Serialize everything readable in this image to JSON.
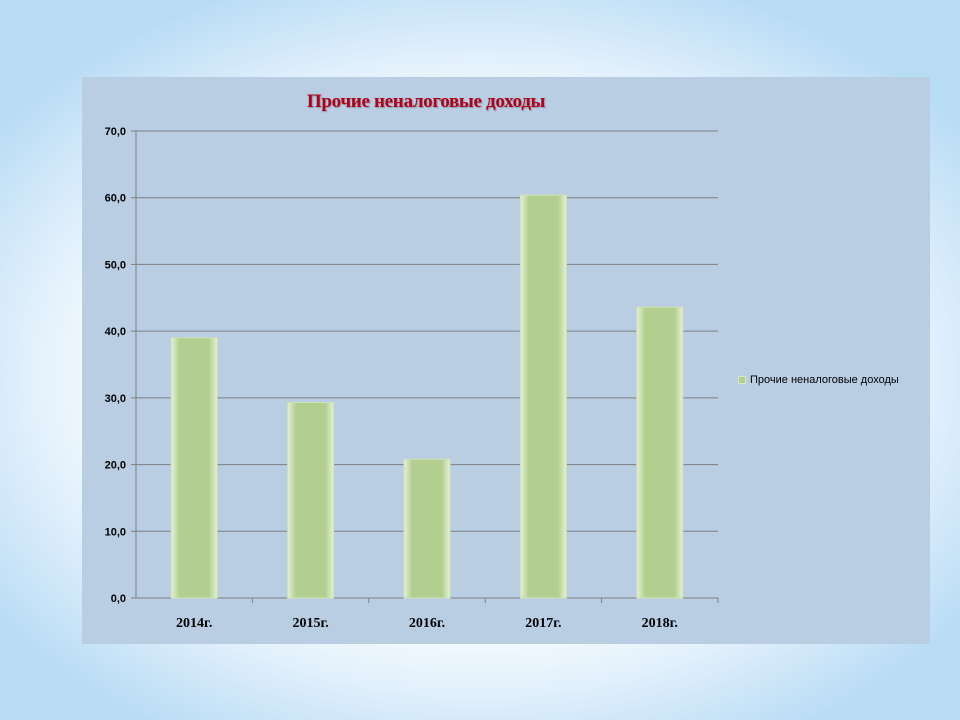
{
  "chart_data": {
    "type": "bar",
    "title": "Прочие неналоговые доходы",
    "categories": [
      "2014г.",
      "2015г.",
      "2016г.",
      "2017г.",
      "2018г."
    ],
    "series": [
      {
        "name": "Прочие неналоговые доходы",
        "values": [
          39.0,
          29.3,
          20.8,
          60.4,
          43.6
        ]
      }
    ],
    "yticks": [
      "0,0",
      "10,0",
      "20,0",
      "30,0",
      "40,0",
      "50,0",
      "60,0",
      "70,0"
    ],
    "ylim": [
      0,
      70
    ],
    "grid": true,
    "legend_position": "right",
    "colors": {
      "bar": "#b2cf8f",
      "bar_highlight": "#e6f1d6",
      "plot_bg": "#b9cde3",
      "gridline": "#7f7f7f",
      "title": "#b0001a"
    }
  }
}
